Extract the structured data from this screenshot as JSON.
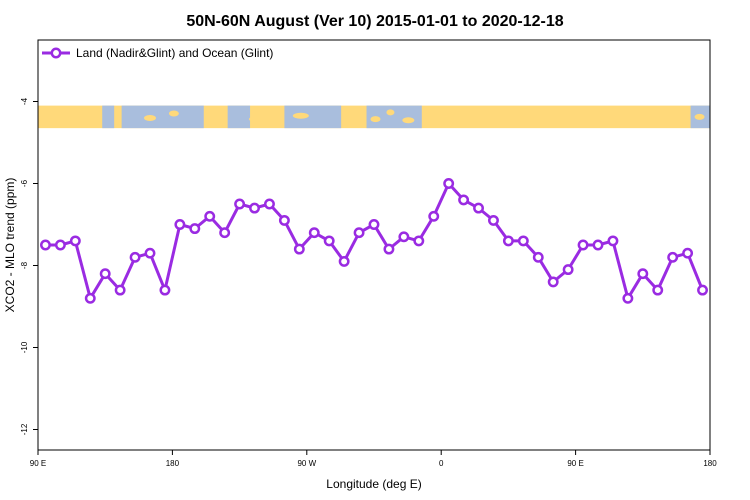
{
  "chart_data": {
    "type": "line",
    "title": "50N-60N August (Ver 10)   2015-01-01 to 2020-12-18",
    "xlabel": "Longitude (deg E)",
    "ylabel": "XCO2 - MLO trend (ppm)",
    "xlim": [
      90,
      540
    ],
    "ylim": [
      -12.5,
      -2.5
    ],
    "xticks": [
      {
        "value": 90,
        "label": "90 E"
      },
      {
        "value": 180,
        "label": "180"
      },
      {
        "value": 270,
        "label": "90 W"
      },
      {
        "value": 360,
        "label": "0"
      },
      {
        "value": 450,
        "label": "90 E"
      },
      {
        "value": 540,
        "label": "180"
      }
    ],
    "yticks": [
      {
        "value": -4,
        "label": "-4"
      },
      {
        "value": -6,
        "label": "-6"
      },
      {
        "value": -8,
        "label": "-8"
      },
      {
        "value": -10,
        "label": "-10"
      },
      {
        "value": -12,
        "label": "-12"
      }
    ],
    "map_strip": {
      "lat_range": "50N-60N",
      "y_top": -4.1,
      "y_bottom": -4.65,
      "land_color": "#ffd97a",
      "ocean_color": "#a9bedd"
    },
    "series": [
      {
        "name": "Land (Nadir&Glint) and Ocean (Glint)",
        "color": "#9a2be2",
        "x": [
          95,
          105,
          115,
          125,
          135,
          145,
          155,
          165,
          175,
          185,
          195,
          205,
          215,
          225,
          235,
          245,
          255,
          265,
          275,
          285,
          295,
          305,
          315,
          325,
          335,
          345,
          355,
          365,
          375,
          385,
          395,
          405,
          415,
          425,
          435,
          445,
          455,
          465,
          475,
          485,
          495,
          505,
          515,
          525,
          535
        ],
        "y": [
          -7.5,
          -7.5,
          -7.4,
          -8.8,
          -8.2,
          -8.6,
          -7.8,
          -7.7,
          -8.6,
          -7.0,
          -7.1,
          -6.8,
          -7.2,
          -6.5,
          -6.6,
          -6.5,
          -6.9,
          -7.6,
          -7.2,
          -7.4,
          -7.9,
          -7.2,
          -7.0,
          -7.6,
          -7.3,
          -7.4,
          -6.8,
          -6.0,
          -6.4,
          -6.6,
          -6.9,
          -7.4,
          -7.4,
          -7.8,
          -8.4,
          -8.1,
          -7.5,
          -7.5,
          -7.4,
          -8.8,
          -8.2,
          -8.6,
          -7.8,
          -7.7,
          -8.6
        ]
      }
    ],
    "legend": {
      "position": "top-left"
    }
  }
}
